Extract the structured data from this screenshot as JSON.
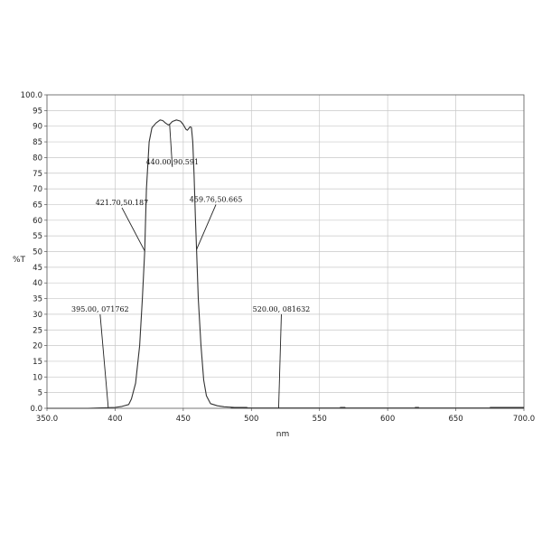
{
  "chart_data": {
    "type": "line",
    "title": "",
    "xlabel": "nm",
    "ylabel": "%T",
    "xlim": [
      350,
      700
    ],
    "ylim": [
      0,
      100
    ],
    "x_ticks": [
      350,
      400,
      450,
      500,
      550,
      600,
      650,
      700
    ],
    "x_tick_labels": [
      "350.0",
      "400",
      "450",
      "500",
      "550",
      "600",
      "650",
      "700.0"
    ],
    "y_ticks": [
      0,
      5,
      10,
      15,
      20,
      25,
      30,
      35,
      40,
      45,
      50,
      55,
      60,
      65,
      70,
      75,
      80,
      85,
      90,
      95,
      100
    ],
    "y_tick_labels": [
      "0.0",
      "5",
      "10",
      "15",
      "20",
      "25",
      "30",
      "35",
      "40",
      "45",
      "50",
      "55",
      "60",
      "65",
      "70",
      "75",
      "80",
      "85",
      "90",
      "95",
      "100.0"
    ],
    "grid": true,
    "series": [
      {
        "color": "#333333",
        "x": [
          350,
          380,
          400,
          405,
          410,
          412,
          415,
          418,
          420,
          421.7,
          423,
          425,
          427,
          430,
          433,
          435,
          437,
          439,
          440,
          442,
          445,
          448,
          450,
          452,
          453,
          455,
          456,
          457,
          458,
          459,
          459.76,
          461,
          463,
          465,
          467,
          470,
          475,
          480,
          490,
          500,
          520,
          560,
          600,
          650,
          700
        ],
        "y": [
          0.0,
          0.0,
          0.3,
          0.6,
          1.2,
          3.0,
          8.0,
          20.0,
          35.0,
          50.187,
          70.0,
          85.0,
          89.5,
          91.0,
          92.0,
          91.8,
          91.0,
          90.4,
          90.591,
          91.5,
          92.0,
          91.6,
          90.5,
          89.0,
          88.7,
          89.8,
          89.6,
          85.0,
          74.0,
          60.0,
          50.665,
          35.0,
          20.0,
          9.0,
          4.0,
          1.5,
          0.8,
          0.5,
          0.2,
          0.1,
          0.1,
          0.1,
          0.1,
          0.1,
          0.1
        ]
      }
    ],
    "annotations": [
      {
        "label": "395.00, 071762",
        "x": 395.0,
        "y": 0.071762,
        "anchor_x": 389,
        "anchor_y": 30
      },
      {
        "label": "421.70,50.187",
        "x": 421.7,
        "y": 50.187,
        "anchor_x": 405,
        "anchor_y": 64
      },
      {
        "label": "440.00,90.591",
        "x": 440.0,
        "y": 90.591,
        "anchor_x": 442,
        "anchor_y": 77
      },
      {
        "label": "459.76,50.665",
        "x": 459.76,
        "y": 50.665,
        "anchor_x": 474,
        "anchor_y": 65
      },
      {
        "label": "520.00, 081632",
        "x": 520.0,
        "y": 0.081632,
        "anchor_x": 522,
        "anchor_y": 30
      }
    ]
  }
}
